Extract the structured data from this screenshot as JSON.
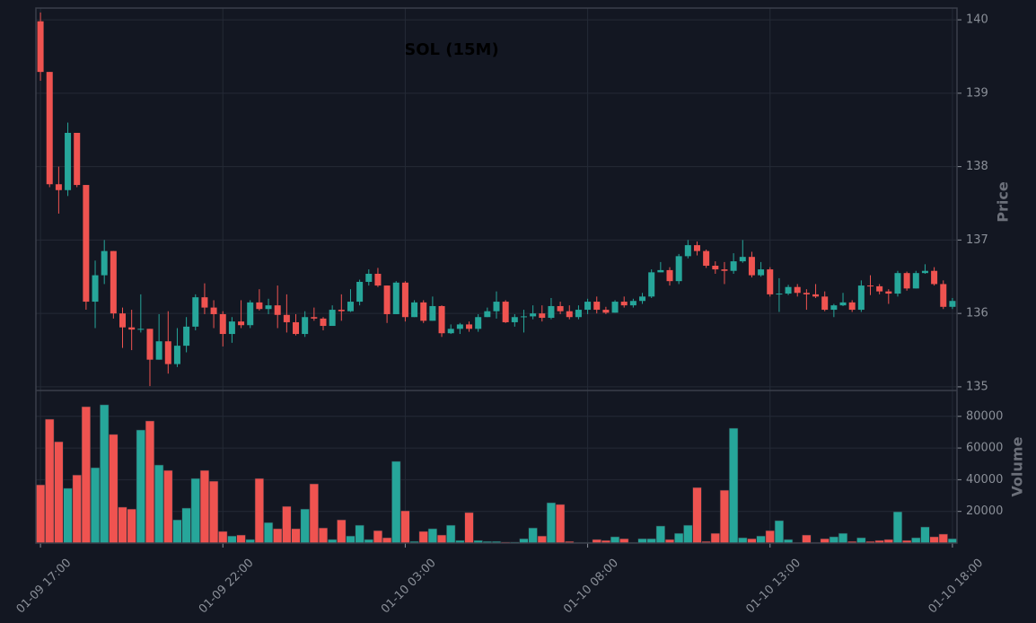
{
  "chart_data": {
    "type": "candlestick",
    "title": "SOL (15M)",
    "ylabel": "Price",
    "volume_label": "Volume",
    "up_color": "#26a69a",
    "down_color": "#ef5350",
    "grid": true,
    "x": [
      "01-09 17:00",
      "01-09 17:15",
      "01-09 17:30",
      "01-09 17:45",
      "01-09 18:00",
      "01-09 18:15",
      "01-09 18:30",
      "01-09 18:45",
      "01-09 19:00",
      "01-09 19:15",
      "01-09 19:30",
      "01-09 19:45",
      "01-09 20:00",
      "01-09 20:15",
      "01-09 20:30",
      "01-09 20:45",
      "01-09 21:00",
      "01-09 21:15",
      "01-09 21:30",
      "01-09 21:45",
      "01-09 22:00",
      "01-09 22:15",
      "01-09 22:30",
      "01-09 22:45",
      "01-09 23:00",
      "01-09 23:15",
      "01-09 23:30",
      "01-09 23:45",
      "01-10 00:00",
      "01-10 00:15",
      "01-10 00:30",
      "01-10 00:45",
      "01-10 01:00",
      "01-10 01:15",
      "01-10 01:30",
      "01-10 01:45",
      "01-10 02:00",
      "01-10 02:15",
      "01-10 02:30",
      "01-10 02:45",
      "01-10 03:00",
      "01-10 03:15",
      "01-10 03:30",
      "01-10 03:45",
      "01-10 04:00",
      "01-10 04:15",
      "01-10 04:30",
      "01-10 04:45",
      "01-10 05:00",
      "01-10 05:15",
      "01-10 05:30",
      "01-10 05:45",
      "01-10 06:00",
      "01-10 06:15",
      "01-10 06:30",
      "01-10 06:45",
      "01-10 07:00",
      "01-10 07:15",
      "01-10 07:30",
      "01-10 07:45",
      "01-10 08:00",
      "01-10 08:15",
      "01-10 08:30",
      "01-10 08:45",
      "01-10 09:00",
      "01-10 09:15",
      "01-10 09:30",
      "01-10 09:45",
      "01-10 10:00",
      "01-10 10:15",
      "01-10 10:30",
      "01-10 10:45",
      "01-10 11:00",
      "01-10 11:15",
      "01-10 11:30",
      "01-10 11:45",
      "01-10 12:00",
      "01-10 12:15",
      "01-10 12:30",
      "01-10 12:45",
      "01-10 13:00",
      "01-10 13:15",
      "01-10 13:30",
      "01-10 13:45",
      "01-10 14:00",
      "01-10 14:15",
      "01-10 14:30",
      "01-10 14:45",
      "01-10 15:00",
      "01-10 15:15",
      "01-10 15:30",
      "01-10 15:45",
      "01-10 16:00",
      "01-10 16:15",
      "01-10 16:30",
      "01-10 16:45",
      "01-10 17:00",
      "01-10 17:15",
      "01-10 17:30",
      "01-10 17:45",
      "01-10 18:00"
    ],
    "open": [
      139.98,
      139.29,
      137.76,
      137.68,
      138.46,
      137.75,
      136.16,
      136.52,
      136.85,
      136.0,
      135.81,
      135.78,
      135.79,
      135.37,
      135.62,
      135.31,
      135.56,
      135.82,
      136.22,
      136.08,
      135.99,
      135.72,
      135.89,
      135.84,
      136.15,
      136.06,
      136.11,
      135.98,
      135.88,
      135.72,
      135.95,
      135.93,
      135.83,
      136.05,
      136.03,
      136.16,
      136.43,
      136.54,
      136.38,
      135.99,
      136.42,
      135.95,
      136.15,
      135.9,
      136.1,
      135.73,
      135.79,
      135.85,
      135.79,
      135.95,
      136.03,
      136.16,
      135.88,
      135.95,
      135.96,
      136.0,
      135.94,
      136.1,
      136.03,
      135.95,
      136.05,
      136.16,
      136.05,
      136.01,
      136.16,
      136.11,
      136.17,
      136.23,
      136.56,
      136.59,
      136.44,
      136.78,
      136.93,
      136.85,
      136.65,
      136.6,
      136.58,
      136.71,
      136.77,
      136.52,
      136.6,
      136.26,
      136.27,
      136.36,
      136.28,
      136.26,
      136.23,
      136.05,
      136.11,
      136.15,
      136.05,
      136.38,
      136.37,
      136.3,
      136.27,
      136.55,
      136.34,
      136.55,
      136.58,
      136.4,
      136.09
    ],
    "high": [
      140.1,
      139.29,
      138.0,
      138.6,
      138.46,
      137.75,
      136.72,
      137.0,
      136.85,
      136.08,
      136.05,
      136.26,
      135.79,
      135.99,
      136.03,
      135.8,
      135.95,
      136.26,
      136.41,
      136.18,
      136.03,
      135.95,
      136.18,
      136.18,
      136.33,
      136.2,
      136.38,
      136.26,
      135.99,
      136.03,
      136.08,
      135.95,
      136.11,
      136.26,
      136.33,
      136.46,
      136.6,
      136.62,
      136.38,
      136.44,
      136.44,
      136.18,
      136.18,
      136.23,
      136.11,
      135.85,
      135.87,
      135.89,
      135.99,
      136.08,
      136.3,
      136.18,
      135.99,
      136.05,
      136.11,
      136.11,
      136.21,
      136.16,
      136.11,
      136.11,
      136.2,
      136.23,
      136.09,
      136.18,
      136.23,
      136.2,
      136.28,
      136.6,
      136.7,
      136.63,
      136.81,
      137.0,
      136.98,
      136.87,
      136.71,
      136.7,
      136.82,
      137.0,
      136.84,
      136.7,
      136.63,
      136.48,
      136.39,
      136.4,
      136.33,
      136.4,
      136.3,
      136.13,
      136.28,
      136.18,
      136.45,
      136.52,
      136.4,
      136.33,
      136.58,
      136.57,
      136.58,
      136.67,
      136.63,
      136.45,
      136.21
    ],
    "low": [
      139.17,
      137.72,
      137.36,
      137.6,
      137.72,
      136.05,
      135.8,
      136.4,
      135.93,
      135.53,
      135.5,
      135.74,
      135.01,
      135.37,
      135.18,
      135.27,
      135.47,
      135.77,
      135.99,
      135.8,
      135.55,
      135.6,
      135.8,
      135.8,
      136.04,
      135.99,
      135.8,
      135.74,
      135.7,
      135.68,
      135.9,
      135.77,
      135.85,
      135.9,
      136.02,
      136.11,
      136.38,
      136.36,
      135.87,
      135.99,
      135.89,
      135.95,
      135.87,
      135.9,
      135.68,
      135.72,
      135.72,
      135.75,
      135.75,
      135.95,
      135.93,
      135.87,
      135.82,
      135.74,
      135.92,
      135.89,
      135.92,
      135.99,
      135.92,
      135.92,
      135.99,
      136.0,
      135.99,
      136.01,
      136.08,
      136.08,
      136.13,
      136.21,
      136.56,
      136.38,
      136.4,
      136.75,
      136.79,
      136.62,
      136.54,
      136.4,
      136.54,
      136.69,
      136.49,
      136.5,
      136.23,
      136.02,
      136.25,
      136.23,
      136.05,
      136.21,
      136.03,
      135.95,
      136.1,
      136.02,
      136.02,
      136.25,
      136.26,
      136.13,
      136.23,
      136.31,
      136.34,
      136.54,
      136.38,
      136.06,
      136.06
    ],
    "close": [
      139.29,
      137.76,
      137.68,
      138.46,
      137.75,
      136.16,
      136.52,
      136.85,
      136.0,
      135.81,
      135.78,
      135.79,
      135.37,
      135.62,
      135.31,
      135.56,
      135.82,
      136.22,
      136.08,
      135.99,
      135.72,
      135.89,
      135.84,
      136.15,
      136.06,
      136.11,
      135.98,
      135.88,
      135.72,
      135.95,
      135.93,
      135.83,
      136.05,
      136.03,
      136.16,
      136.43,
      136.54,
      136.38,
      135.99,
      136.42,
      135.95,
      136.15,
      135.9,
      136.1,
      135.73,
      135.79,
      135.85,
      135.79,
      135.95,
      136.03,
      136.16,
      135.88,
      135.95,
      135.96,
      136.0,
      135.94,
      136.1,
      136.03,
      135.95,
      136.05,
      136.16,
      136.05,
      136.01,
      136.16,
      136.11,
      136.17,
      136.23,
      136.56,
      136.59,
      136.44,
      136.78,
      136.93,
      136.85,
      136.65,
      136.6,
      136.58,
      136.71,
      136.77,
      136.52,
      136.6,
      136.26,
      136.27,
      136.36,
      136.28,
      136.26,
      136.23,
      136.05,
      136.11,
      136.15,
      136.05,
      136.38,
      136.37,
      136.3,
      136.27,
      136.55,
      136.34,
      136.55,
      136.58,
      136.4,
      136.09,
      136.17
    ],
    "volume": [
      36800,
      78200,
      64000,
      34600,
      43000,
      86100,
      47600,
      87300,
      68600,
      22700,
      21500,
      71400,
      77100,
      49300,
      45900,
      14700,
      22100,
      40800,
      45900,
      39100,
      7400,
      4500,
      5100,
      2300,
      40800,
      13000,
      9100,
      23200,
      9100,
      21500,
      37400,
      9600,
      2300,
      14700,
      4500,
      11300,
      2300,
      7900,
      3400,
      51600,
      20400,
      1100,
      7400,
      9100,
      5100,
      11300,
      1700,
      19300,
      1700,
      1100,
      1100,
      700,
      700,
      2800,
      9600,
      4500,
      25500,
      24400,
      1100,
      500,
      500,
      2300,
      1700,
      4000,
      2800,
      500,
      2800,
      2800,
      10800,
      2300,
      6200,
      11300,
      35100,
      1100,
      6200,
      33400,
      72500,
      3400,
      2800,
      4500,
      7900,
      14200,
      2300,
      500,
      5100,
      500,
      2800,
      4000,
      6200,
      1100,
      3400,
      1100,
      1700,
      2300,
      19800,
      1700,
      3400,
      10200,
      4000,
      5700,
      2800
    ],
    "ylim": [
      134.95,
      140.16
    ],
    "yticks": [
      135,
      136,
      137,
      138,
      139,
      140
    ],
    "volume_ylim": [
      0,
      96300
    ],
    "volume_yticks": [
      20000,
      40000,
      60000,
      80000
    ],
    "xticks": [
      "01-09 17:00",
      "01-09 22:00",
      "01-10 03:00",
      "01-10 08:00",
      "01-10 13:00",
      "01-10 18:00"
    ]
  }
}
